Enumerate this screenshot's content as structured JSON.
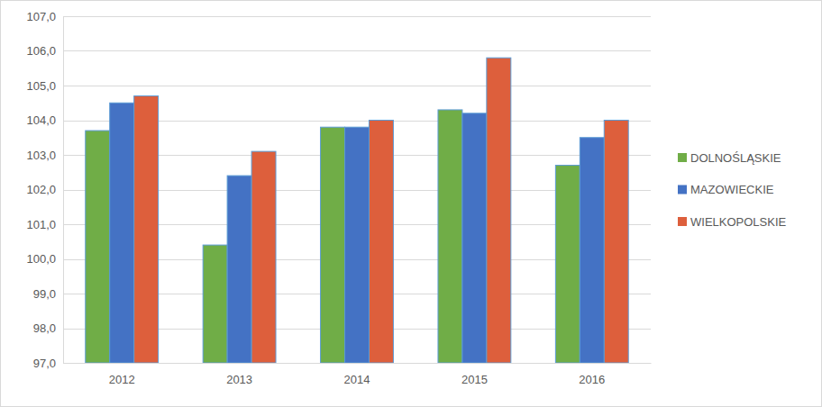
{
  "chart_data": {
    "type": "bar",
    "categories": [
      "2012",
      "2013",
      "2014",
      "2015",
      "2016"
    ],
    "series": [
      {
        "name": "DOLNOŚLĄSKIE",
        "color": "#70ad47",
        "values": [
          103.7,
          100.4,
          103.8,
          104.3,
          102.7
        ]
      },
      {
        "name": "MAZOWIECKIE",
        "color": "#4472c4",
        "values": [
          104.5,
          102.4,
          103.8,
          104.2,
          103.5
        ]
      },
      {
        "name": "WIELKOPOLSKIE",
        "color": "#dd5f3c",
        "values": [
          104.7,
          103.1,
          104.0,
          105.8,
          104.0
        ]
      }
    ],
    "ylim": [
      97,
      107
    ],
    "yticks": [
      {
        "value": 97,
        "label": "97,0"
      },
      {
        "value": 98,
        "label": "98,0"
      },
      {
        "value": 99,
        "label": "99,0"
      },
      {
        "value": 100,
        "label": "100,0"
      },
      {
        "value": 101,
        "label": "101,0"
      },
      {
        "value": 102,
        "label": "102,0"
      },
      {
        "value": 103,
        "label": "103,0"
      },
      {
        "value": 104,
        "label": "104,0"
      },
      {
        "value": 105,
        "label": "105,0"
      },
      {
        "value": 106,
        "label": "106,0"
      },
      {
        "value": 107,
        "label": "107,0"
      }
    ],
    "grid": true,
    "legend": "right"
  }
}
